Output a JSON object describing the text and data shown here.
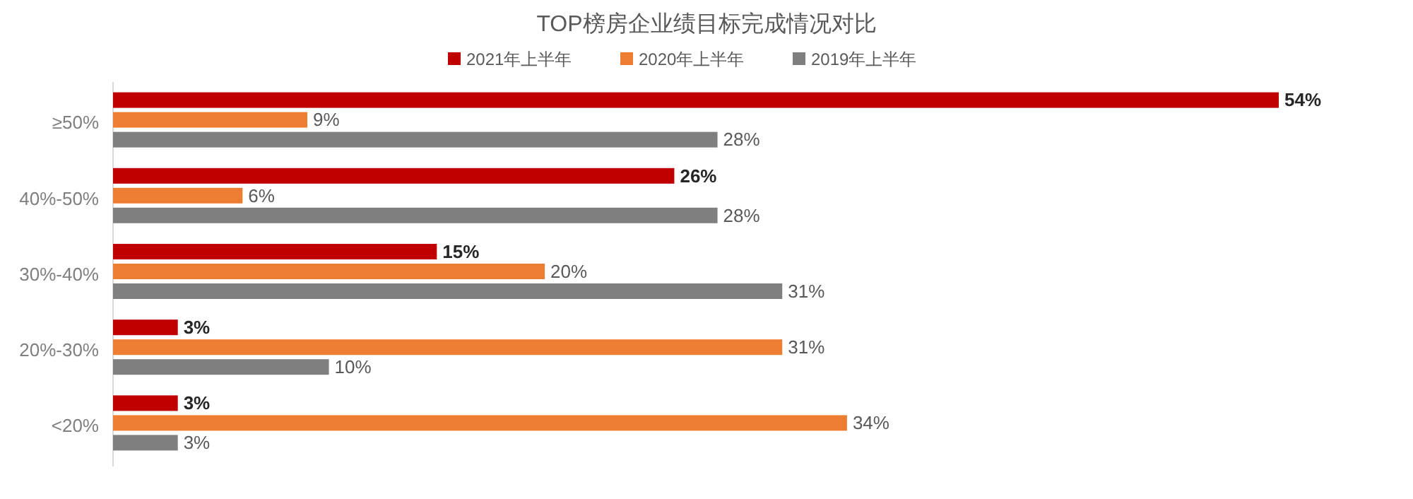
{
  "chart_data": {
    "type": "bar",
    "orientation": "horizontal",
    "title": "TOP榜房企业绩目标完成情况对比",
    "legend": "top",
    "categories": [
      "≥50%",
      "40%-50%",
      "30%-40%",
      "20%-30%",
      "<20%"
    ],
    "series": [
      {
        "name": "2021年上半年",
        "color": "#c00000",
        "values": [
          54,
          26,
          15,
          3,
          3
        ],
        "value_labels": [
          "54%",
          "26%",
          "15%",
          "3%",
          "3%"
        ]
      },
      {
        "name": "2020年上半年",
        "color": "#ed7d31",
        "values": [
          9,
          6,
          20,
          31,
          34
        ],
        "value_labels": [
          "9%",
          "6%",
          "20%",
          "31%",
          "34%"
        ]
      },
      {
        "name": "2019年上半年",
        "color": "#7f7f7f",
        "values": [
          28,
          28,
          31,
          10,
          3
        ],
        "value_labels": [
          "28%",
          "28%",
          "31%",
          "10%",
          "3%"
        ]
      }
    ]
  }
}
